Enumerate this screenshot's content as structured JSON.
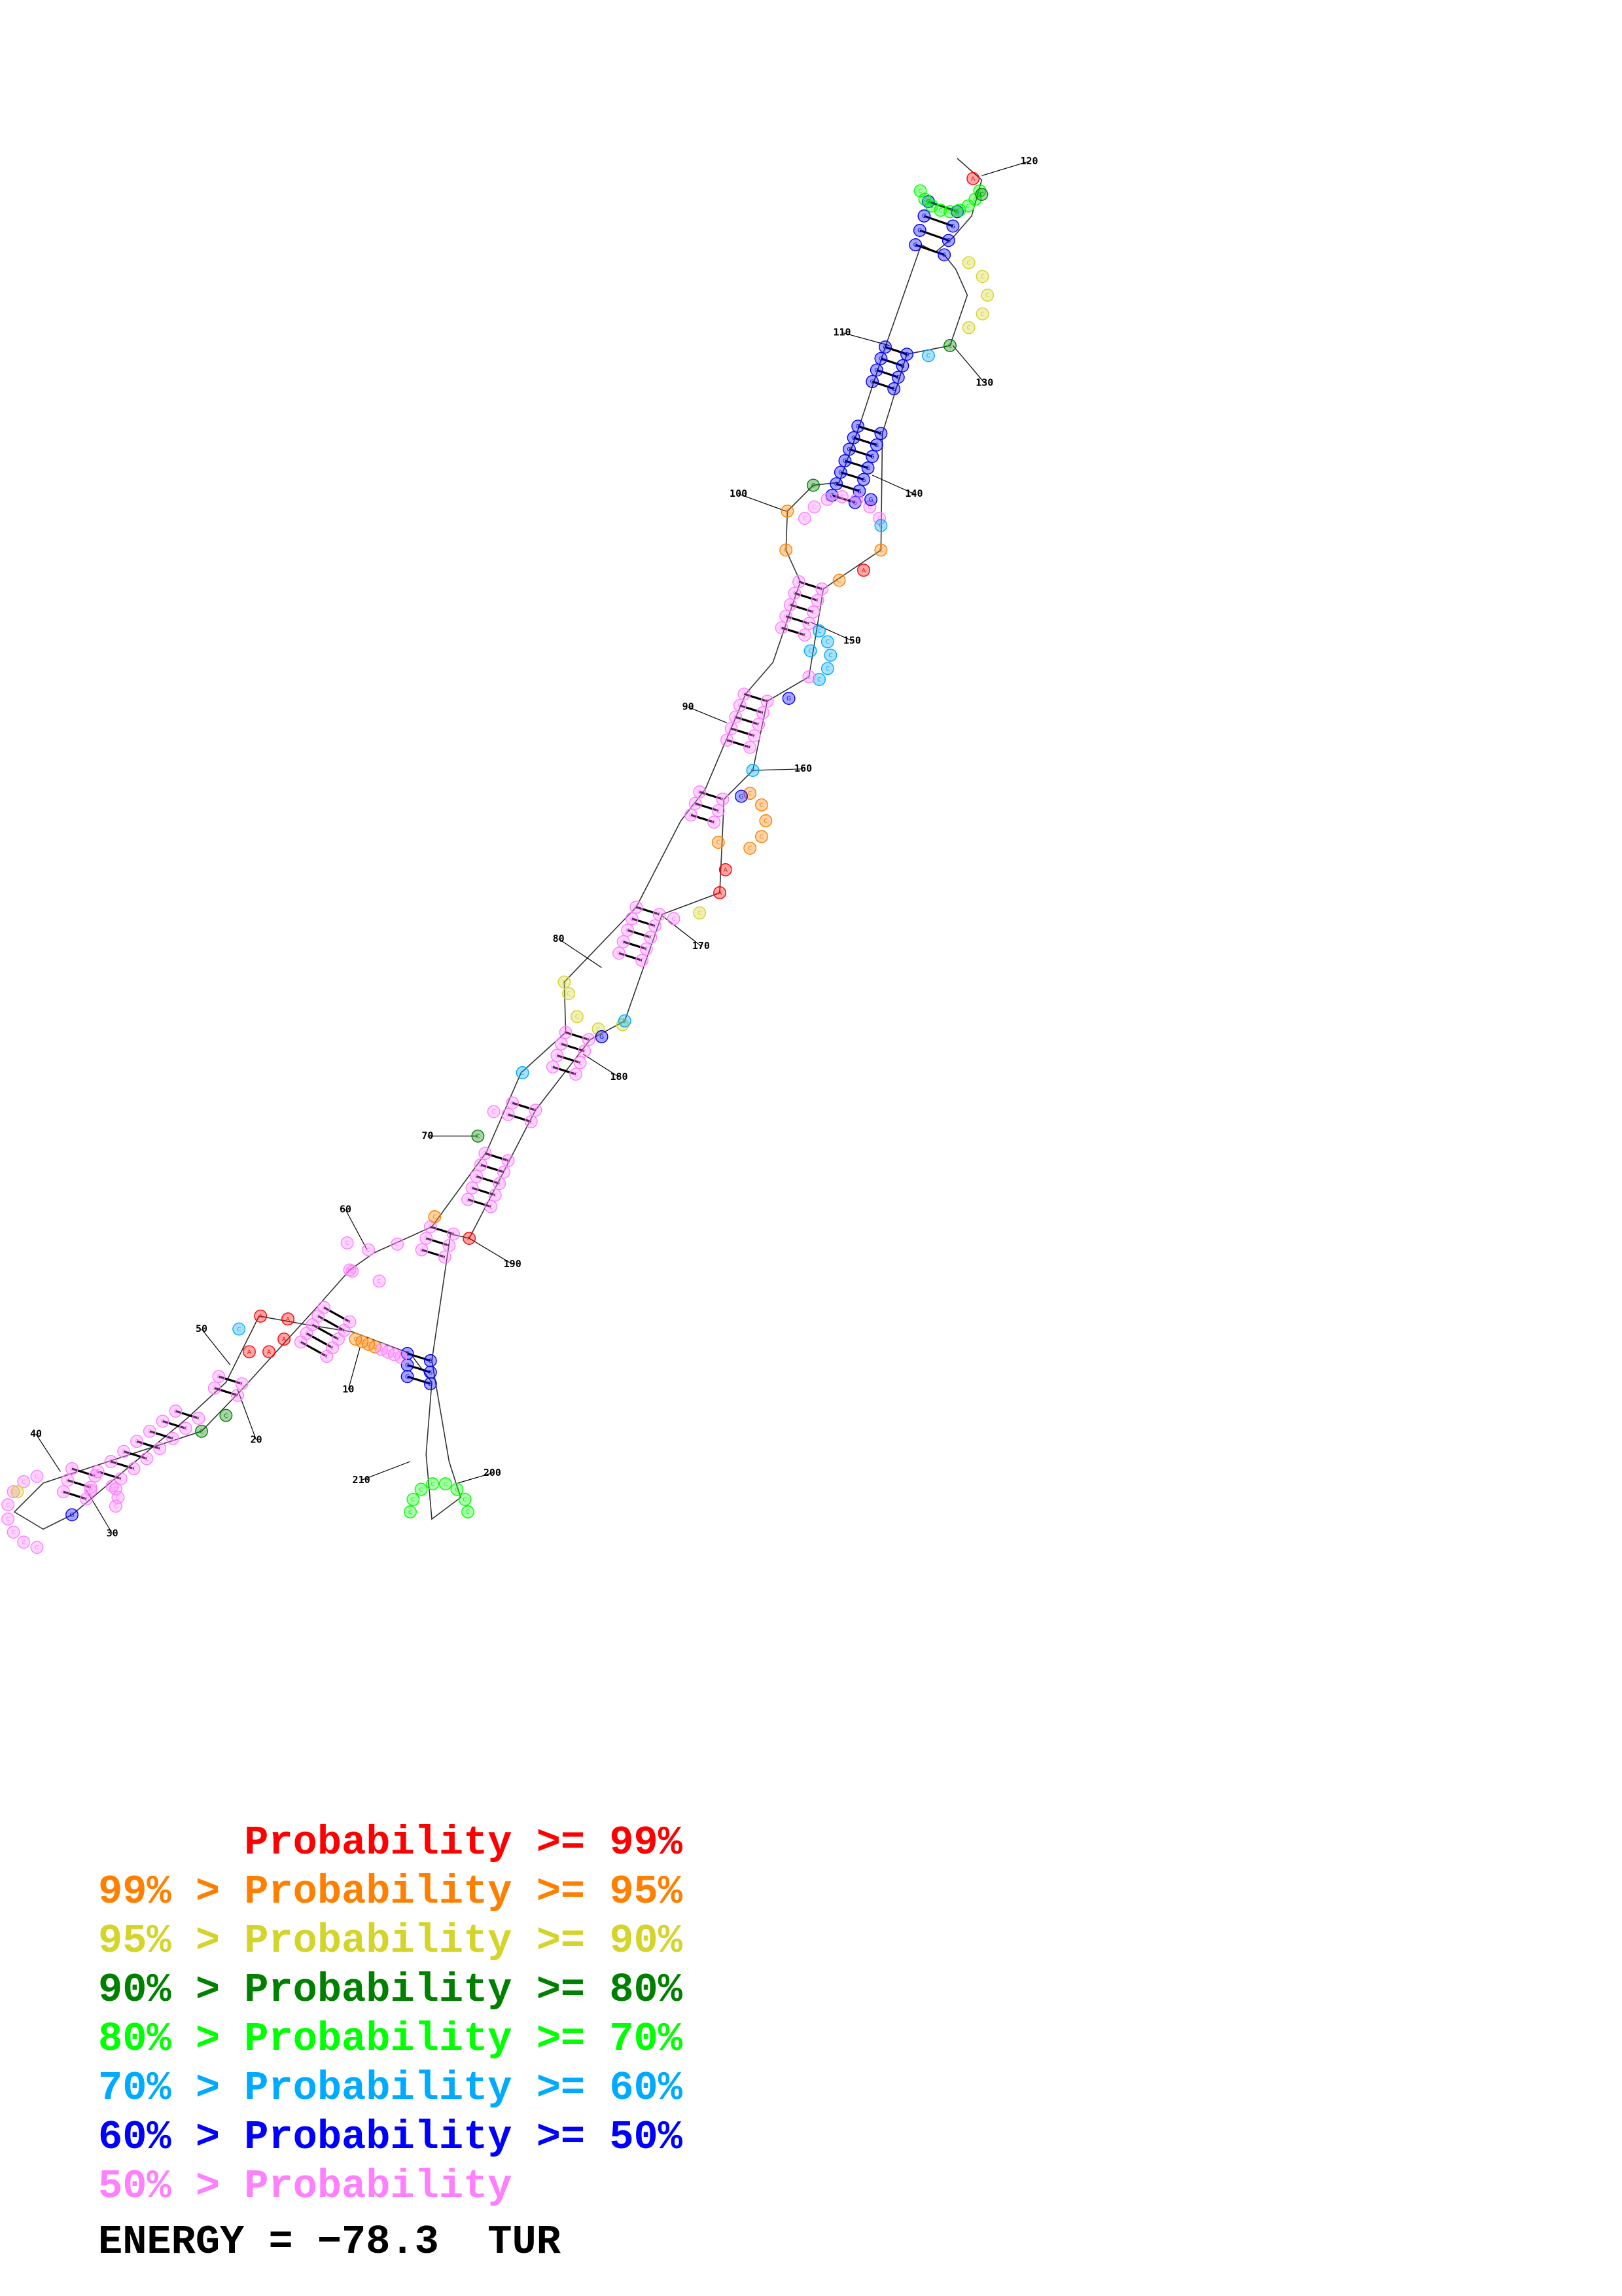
{
  "structure": {
    "colors": {
      "p99": "#ff0000",
      "p95": "#ff8000",
      "p90": "#d4d42b",
      "p80": "#008000",
      "p70": "#00ff00",
      "p60": "#00aaff",
      "p50": "#0000ff",
      "plow": "#ff80ff"
    },
    "position_labels": [
      "10",
      "20",
      "30",
      "40",
      "50",
      "60",
      "70",
      "80",
      "90",
      "100",
      "110",
      "120",
      "130",
      "140",
      "150",
      "160",
      "170",
      "180",
      "190",
      "200",
      "210"
    ],
    "base_letters": {
      "outline": "C",
      "red": "A",
      "blue": "G"
    }
  },
  "legend": {
    "lines": [
      {
        "text": "      Probability >= 99%",
        "color": "#ff0000"
      },
      {
        "text": "99% > Probability >= 95%",
        "color": "#ff8000"
      },
      {
        "text": "95% > Probability >= 90%",
        "color": "#d4d42b"
      },
      {
        "text": "90% > Probability >= 80%",
        "color": "#008000"
      },
      {
        "text": "80% > Probability >= 70%",
        "color": "#00ff00"
      },
      {
        "text": "70% > Probability >= 60%",
        "color": "#00aaff"
      },
      {
        "text": "60% > Probability >= 50%",
        "color": "#0000ff"
      },
      {
        "text": "50% > Probability",
        "color": "#ff80ff"
      }
    ],
    "energy": "ENERGY = −78.3  TUR"
  }
}
